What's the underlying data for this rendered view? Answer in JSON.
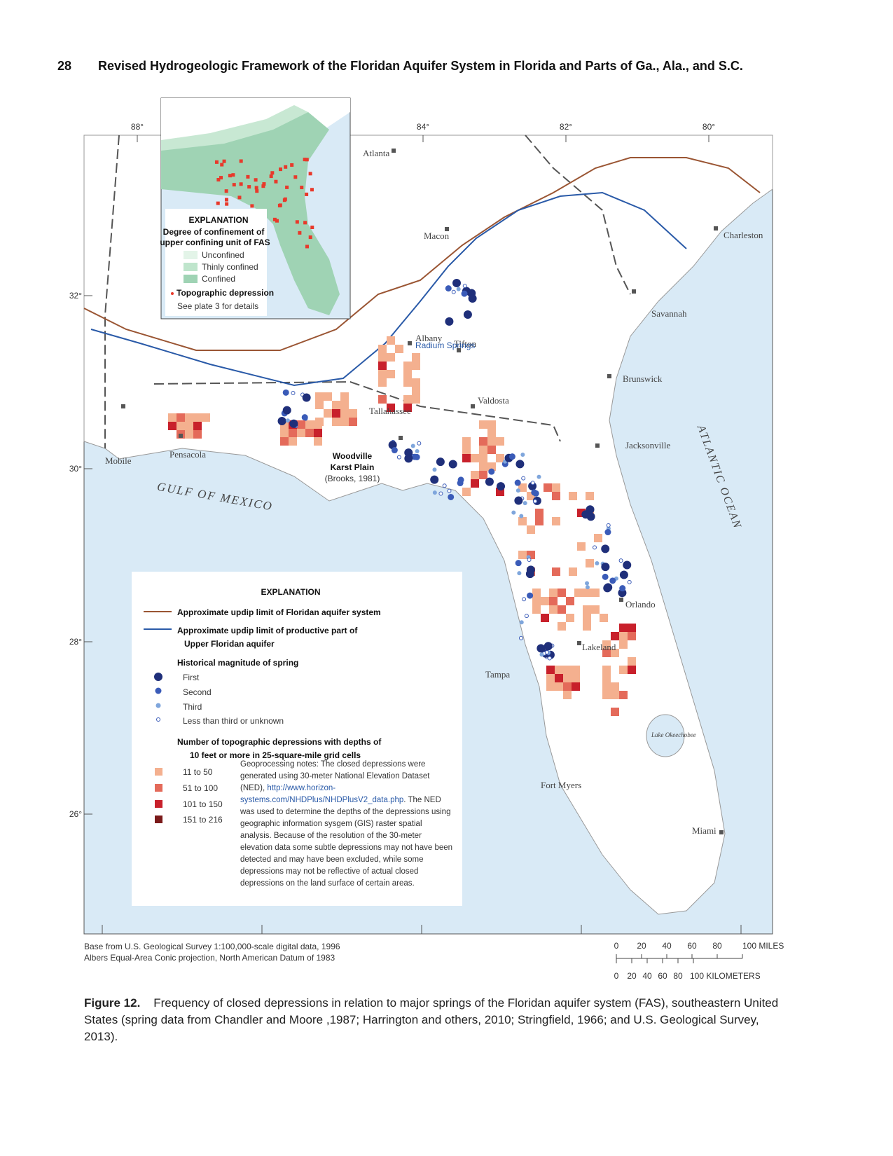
{
  "header": {
    "page_number": "28",
    "title": "Revised Hydrogeologic Framework of the Floridan Aquifer System in Florida and Parts of Ga., Ala., and S.C."
  },
  "map": {
    "longitude_labels": [
      "88°",
      "84°",
      "82°",
      "80°"
    ],
    "latitude_labels": [
      "32°",
      "30°",
      "28°",
      "26°"
    ],
    "places": [
      "Atlanta",
      "Macon",
      "Charleston",
      "Savannah",
      "Tifton",
      "Albany",
      "Brunswick",
      "Valdosta",
      "Jacksonville",
      "Tallahassee",
      "Pensacola",
      "Mobile",
      "Orlando",
      "Lakeland",
      "Tampa",
      "Fort Myers",
      "Miami",
      "Lake Okeechobee"
    ],
    "spring_label": "Radium Springs",
    "water_labels": [
      "GULF OF MEXICO",
      "ATLANTIC OCEAN"
    ],
    "annotation": {
      "title": [
        "Woodville",
        "Karst Plain"
      ],
      "source": "(Brooks, 1981)"
    }
  },
  "inset": {
    "title": "EXPLANATION",
    "subtitle": [
      "Degree of confinement of",
      "upper confining unit of FAS"
    ],
    "items": [
      "Unconfined",
      "Thinly confined",
      "Confined"
    ],
    "depression": "Topographic depression",
    "note": "See plate 3 for details"
  },
  "explanation": {
    "title": "EXPLANATION",
    "lines": [
      [
        "Approximate updip limit of Floridan aquifer system"
      ],
      [
        "Approximate updip limit of productive part of",
        "Upper Floridan aquifer"
      ]
    ],
    "springs_title": "Historical magnitude of spring",
    "springs": [
      "First",
      "Second",
      "Third",
      "Less than third or unknown"
    ],
    "depressions_title": [
      "Number of topographic depressions with depths of",
      "10 feet or more in 25-square-mile grid cells"
    ],
    "depressions": [
      "11 to 50",
      "51 to 100",
      "101 to 150",
      "151 to 216"
    ],
    "notes": {
      "before": "Geoprocessing notes: The closed depressions were generated using 30-meter National Elevation Dataset (NED), ",
      "link": "http://www.horizon-systems.com/NHDPlus/NHDPlusV2_data.php",
      "after": ". The NED was used to determine the depths of the depressions using geographic information sysgem (GIS) raster spatial analysis. Because of the resolution of the 30-meter elevation data some subtle depressions may not have been detected and may have been excluded, while some depressions may not be reflective of actual closed depressions on the land surface of certain areas."
    }
  },
  "base_note": [
    "Base from U.S. Geological Survey 1:100,000-scale digital data, 1996",
    "Albers Equal-Area Conic projection, North American Datum of 1983"
  ],
  "scale": {
    "miles": [
      "0",
      "20",
      "40",
      "60",
      "80",
      "100 MILES"
    ],
    "kilometers": [
      "0",
      "20",
      "40",
      "60",
      "80",
      "100 KILOMETERS"
    ]
  },
  "caption": {
    "label": "Figure 12.",
    "text": "Frequency of closed depressions in relation to major springs of the Floridan aquifer system (FAS), southeastern United States (spring data from Chandler and Moore ,1987; Harrington and others, 2010; Stringfield, 1966; and U.S. Geological Survey, 2013)."
  }
}
